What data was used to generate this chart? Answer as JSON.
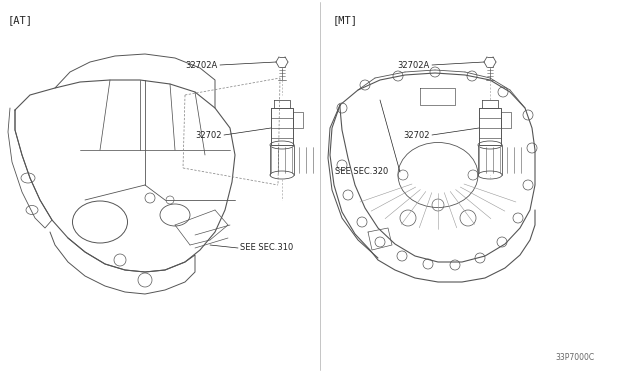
{
  "background_color": "#ffffff",
  "fig_width": 6.4,
  "fig_height": 3.72,
  "dpi": 100,
  "labels": {
    "at_label": "[AT]",
    "mt_label": "[MT]",
    "part_32702A_left": "32702A",
    "part_32702_left": "32702",
    "part_32702A_right": "32702A",
    "part_32702_right": "32702",
    "see_sec_310": "SEE SEC.310",
    "see_sec_320": "SEE SEC.320",
    "part_number": "33P7000C"
  },
  "line_color": "#555555",
  "line_color_dark": "#222222",
  "line_color_med": "#888888",
  "lw_main": 0.7,
  "lw_thin": 0.45,
  "lw_dashed": 0.5,
  "font_label": 6.0,
  "font_bracket": 7.5,
  "font_partnum": 5.5
}
